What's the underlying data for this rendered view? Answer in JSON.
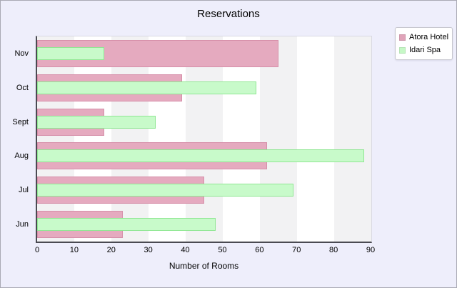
{
  "title": "Reservations",
  "xlabel": "Number of Rooms",
  "legend": {
    "position": "top-right",
    "items": [
      {
        "label": "Atora Hotel",
        "color": "#e0a3b9"
      },
      {
        "label": "Idari Spa",
        "color": "#c6f8c6"
      }
    ]
  },
  "colors": {
    "page_background": "#eeeefb",
    "plot_background": "#ffffff",
    "band_gray": "#f2f2f3",
    "axis_line": "#4a4a52",
    "series_atora_fill": "#e5aabf",
    "series_atora_border": "#d68fa9",
    "series_idari_fill": "#c8faca",
    "series_idari_border": "#90e793"
  },
  "chart_data": {
    "type": "bar",
    "orientation": "horizontal",
    "title": "Reservations",
    "xlabel": "Number of Rooms",
    "categories": [
      "Nov",
      "Oct",
      "Sept",
      "Aug",
      "Jul",
      "Jun"
    ],
    "series": [
      {
        "name": "Atora Hotel",
        "values": [
          65,
          39,
          18,
          62,
          45,
          23
        ],
        "fill": "#e5aabf",
        "border": "#d68fa9"
      },
      {
        "name": "Idari Spa",
        "values": [
          18,
          59,
          32,
          88,
          69,
          48
        ],
        "fill": "#c8faca",
        "border": "#90e793"
      }
    ],
    "xlim": [
      0,
      90
    ],
    "xticks": [
      0,
      10,
      20,
      30,
      40,
      50,
      60,
      70,
      80,
      90
    ],
    "grid": "alternating-vertical-bands",
    "legend_position": "top-right"
  }
}
